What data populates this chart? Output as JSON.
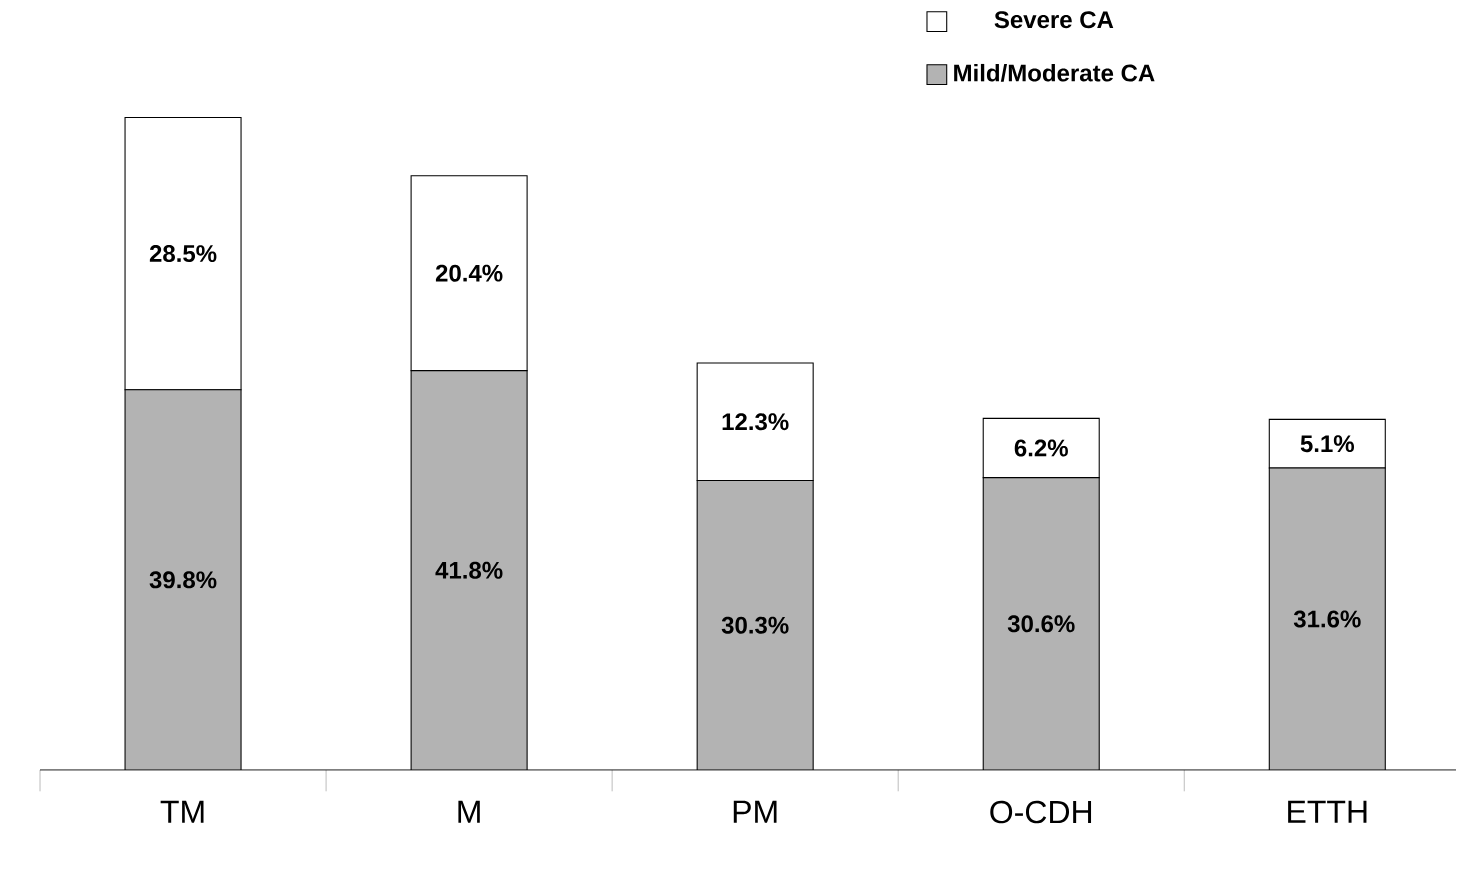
{
  "chart_data": {
    "type": "bar",
    "stacked": true,
    "categories": [
      "TM",
      "M",
      "PM",
      "O-CDH",
      "ETTH"
    ],
    "legend": "top right",
    "series": [
      {
        "name": "Mild/Moderate CA",
        "color": "#b3b3b3",
        "values": [
          39.8,
          41.8,
          30.3,
          30.6,
          31.6
        ],
        "value_labels": [
          "39.8%",
          "41.8%",
          "30.3%",
          "30.6%",
          "31.6%"
        ]
      },
      {
        "name": "Severe CA",
        "color": "#ffffff",
        "values": [
          28.5,
          20.4,
          12.3,
          6.2,
          5.1
        ],
        "value_labels": [
          "28.5%",
          "20.4%",
          "12.3%",
          "6.2%",
          "5.1%"
        ]
      }
    ]
  }
}
